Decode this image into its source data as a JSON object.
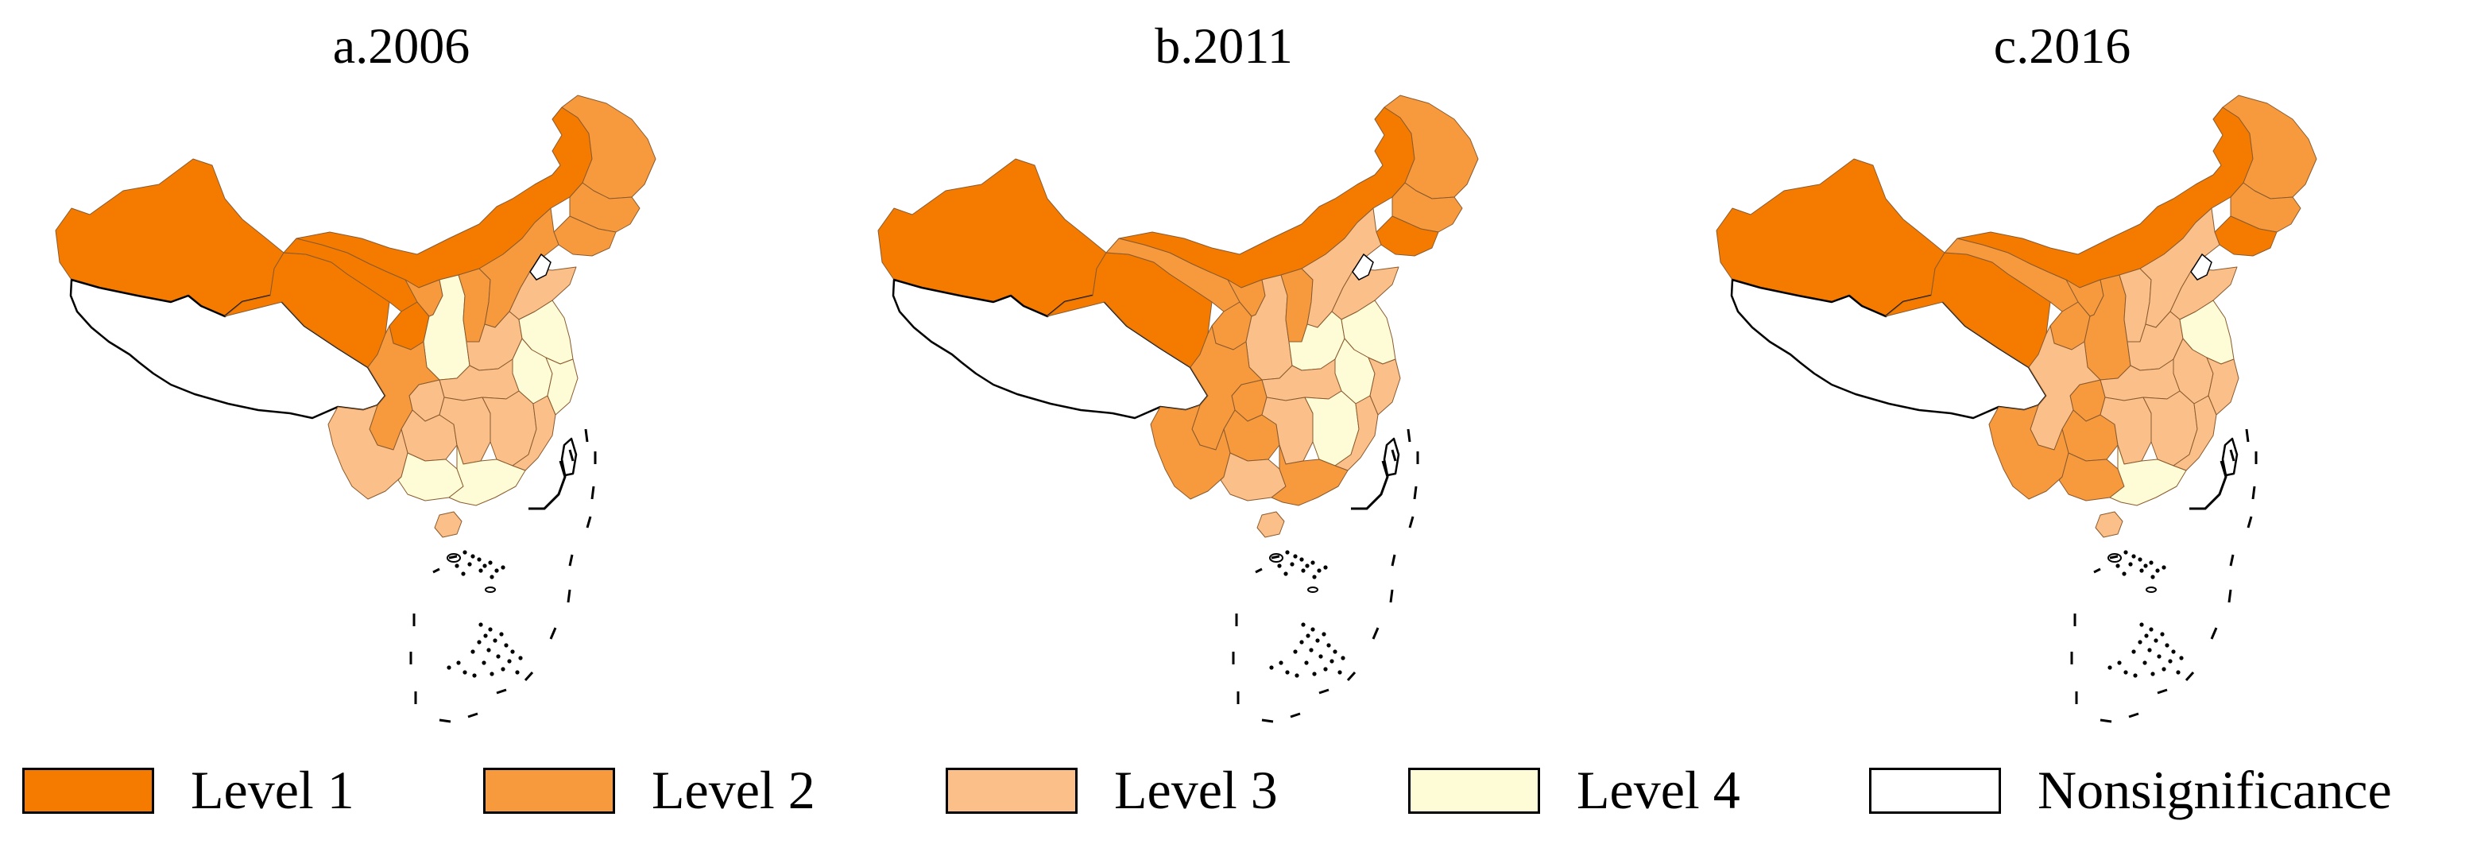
{
  "panels": [
    {
      "title": "a.2006",
      "regions": {
        "xinjiang": "l1",
        "inner_mongolia": "l1",
        "qinghai": "l1",
        "gansu": "l1",
        "heilongjiang": "l2",
        "jilin": "l2",
        "liaoning": "l2",
        "ningxia": "l2",
        "shaanxi": "l4",
        "shanxi": "l2",
        "hebei": "l2",
        "shandong": "l3",
        "henan": "l3",
        "jiangsu": "l4",
        "anhui": "l4",
        "zhejiang": "l4",
        "hubei": "l3",
        "sichuan": "l2",
        "chongqing": "l3",
        "guizhou": "l3",
        "hunan": "l3",
        "jiangxi": "l3",
        "fujian": "l3",
        "yunnan": "l3",
        "guangxi": "l4",
        "guangdong": "l4",
        "hainan": "l3",
        "taiwan": "none",
        "tibet": "none"
      }
    },
    {
      "title": "b.2011",
      "regions": {
        "xinjiang": "l1",
        "inner_mongolia": "l1",
        "qinghai": "l1",
        "gansu": "l2",
        "heilongjiang": "l2",
        "jilin": "l2",
        "liaoning": "l1",
        "ningxia": "l2",
        "shaanxi": "l3",
        "shanxi": "l2",
        "hebei": "l3",
        "shandong": "l3",
        "henan": "l4",
        "jiangsu": "l4",
        "anhui": "l4",
        "zhejiang": "l3",
        "hubei": "l3",
        "sichuan": "l2",
        "chongqing": "l2",
        "guizhou": "l2",
        "hunan": "l3",
        "jiangxi": "l4",
        "fujian": "l3",
        "yunnan": "l2",
        "guangxi": "l3",
        "guangdong": "l2",
        "hainan": "l3",
        "taiwan": "none",
        "tibet": "none"
      }
    },
    {
      "title": "c.2016",
      "regions": {
        "xinjiang": "l1",
        "inner_mongolia": "l1",
        "qinghai": "l1",
        "gansu": "l2",
        "heilongjiang": "l2",
        "jilin": "l2",
        "liaoning": "l1",
        "ningxia": "l2",
        "shaanxi": "l2",
        "shanxi": "l3",
        "hebei": "l3",
        "shandong": "l3",
        "henan": "l3",
        "jiangsu": "l4",
        "anhui": "l3",
        "zhejiang": "l3",
        "hubei": "l3",
        "sichuan": "l3",
        "chongqing": "l2",
        "guizhou": "l2",
        "hunan": "l3",
        "jiangxi": "l3",
        "fujian": "l3",
        "yunnan": "l2",
        "guangxi": "l2",
        "guangdong": "l4",
        "hainan": "l3",
        "taiwan": "none",
        "tibet": "none"
      }
    }
  ],
  "legend": [
    {
      "key": "l1",
      "label": "Level 1",
      "color": "#f47b00"
    },
    {
      "key": "l2",
      "label": "Level 2",
      "color": "#f79a3e"
    },
    {
      "key": "l3",
      "label": "Level 3",
      "color": "#fbc08a"
    },
    {
      "key": "l4",
      "label": "Level 4",
      "color": "#fefcd6"
    },
    {
      "key": "none",
      "label": "Nonsignificance",
      "color": "#ffffff"
    }
  ]
}
